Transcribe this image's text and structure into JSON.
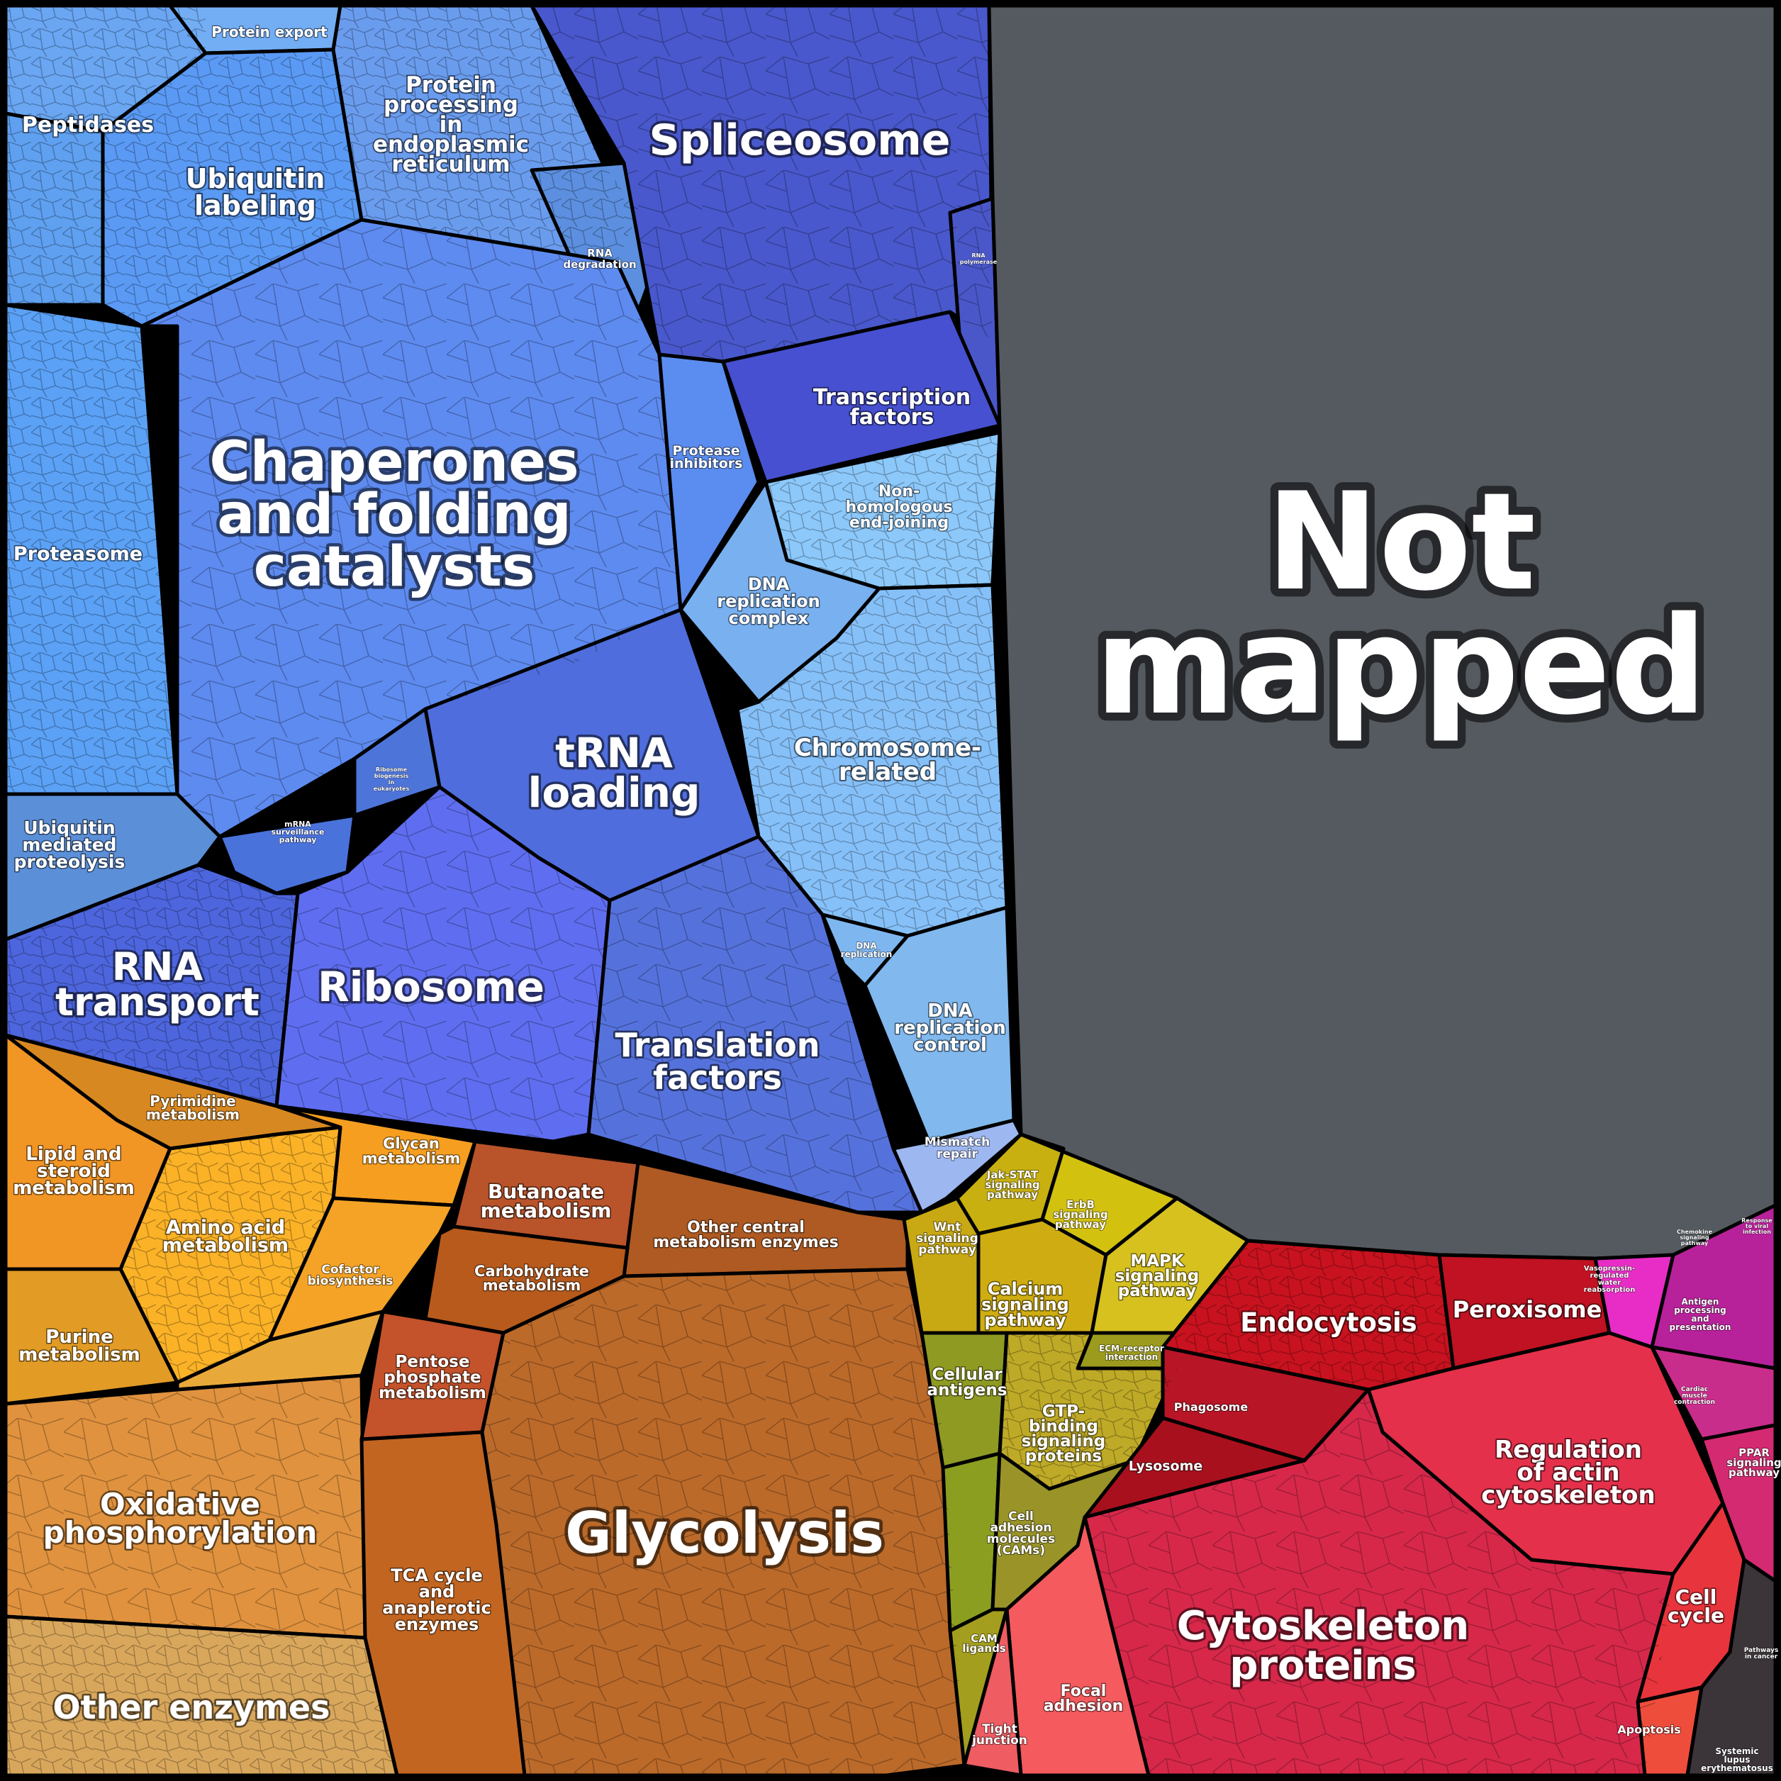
{
  "colors": {
    "blue": "#5b86ee",
    "indigo": "#4a56cf",
    "lightblue": "#88bdf4",
    "orange": "#e99a2e",
    "brown": "#b86626",
    "yellow": "#c9b413",
    "olive": "#9a9a2a",
    "red": "#d6203e",
    "magenta": "#c7239f",
    "gray": "#545a5f"
  },
  "labels": {
    "protein_export": "Protein export",
    "peptidases": "Peptidases",
    "ubiquitin_labeling": [
      "Ubiquitin",
      "labeling"
    ],
    "protein_processing_er": [
      "Protein",
      "processing",
      "in",
      "endoplasmic",
      "reticulum"
    ],
    "spliceosome": "Spliceosome",
    "rna_degradation": [
      "RNA",
      "degradation"
    ],
    "rna_polymerase": [
      "RNA",
      "polymerase"
    ],
    "transcription_factors": [
      "Transcription",
      "factors"
    ],
    "protease_inhibitors": [
      "Protease",
      "inhibitors"
    ],
    "chaperones": [
      "Chaperones",
      "and folding",
      "catalysts"
    ],
    "proteasome": "Proteasome",
    "non_homologous": [
      "Non-",
      "homologous",
      "end-joining"
    ],
    "dna_replication_complex": [
      "DNA",
      "replication",
      "complex"
    ],
    "trna_loading": [
      "tRNA",
      "loading"
    ],
    "ribosome_biogenesis": [
      "Ribosome",
      "biogenesis",
      "in",
      "eukaryotes"
    ],
    "chromosome_related": [
      "Chromosome-",
      "related"
    ],
    "ubiquitin_mediated": [
      "Ubiquitin",
      "mediated",
      "proteolysis"
    ],
    "mrna_surveillance": [
      "mRNA",
      "surveillance",
      "pathway"
    ],
    "rna_transport": [
      "RNA",
      "transport"
    ],
    "ribosome": "Ribosome",
    "dna_replication": [
      "DNA",
      "replication"
    ],
    "dna_replication_control": [
      "DNA",
      "replication",
      "control"
    ],
    "translation_factors": [
      "Translation",
      "factors"
    ],
    "mismatch_repair": [
      "Mismatch",
      "repair"
    ],
    "not_mapped": [
      "Not",
      "mapped"
    ],
    "pyrimidine": [
      "Pyrimidine",
      "metabolism"
    ],
    "lipid_steroid": [
      "Lipid and",
      "steroid",
      "metabolism"
    ],
    "glycan": [
      "Glycan",
      "metabolism"
    ],
    "amino_acid": [
      "Amino acid",
      "metabolism"
    ],
    "cofactor": [
      "Cofactor",
      "biosynthesis"
    ],
    "butanoate": [
      "Butanoate",
      "metabolism"
    ],
    "other_central": [
      "Other central",
      "metabolism enzymes"
    ],
    "carbohydrate": [
      "Carbohydrate",
      "metabolism"
    ],
    "purine": [
      "Purine",
      "metabolism"
    ],
    "pentose": [
      "Pentose",
      "phosphate",
      "metabolism"
    ],
    "oxidative": [
      "Oxidative",
      "phosphorylation"
    ],
    "tca": [
      "TCA cycle",
      "and",
      "anaplerotic",
      "enzymes"
    ],
    "glycolysis": "Glycolysis",
    "other_enzymes": "Other enzymes",
    "jak_stat": [
      "Jak-STAT",
      "signaling",
      "pathway"
    ],
    "erbb": [
      "ErbB",
      "signaling",
      "pathway"
    ],
    "wnt": [
      "Wnt",
      "signaling",
      "pathway"
    ],
    "mapk": [
      "MAPK",
      "signaling",
      "pathway"
    ],
    "calcium": [
      "Calcium",
      "signaling",
      "pathway"
    ],
    "ecm_receptor": [
      "ECM-receptor",
      "interaction"
    ],
    "cellular_antigens": [
      "Cellular",
      "antigens"
    ],
    "gtp_binding": [
      "GTP-",
      "binding",
      "signaling",
      "proteins"
    ],
    "cams": [
      "Cell",
      "adhesion",
      "molecules",
      "(CAMs)"
    ],
    "cam_ligands": [
      "CAM",
      "ligands"
    ],
    "endocytosis": "Endocytosis",
    "peroxisome": "Peroxisome",
    "phagosome": "Phagosome",
    "lysosome": "Lysosome",
    "regulation_actin": [
      "Regulation",
      "of actin",
      "cytoskeleton"
    ],
    "cytoskeleton": [
      "Cytoskeleton",
      "proteins"
    ],
    "focal_adhesion": [
      "Focal",
      "adhesion"
    ],
    "tight_junction": [
      "Tight",
      "junction"
    ],
    "vasopressin": [
      "Vasopressin-",
      "regulated",
      "water",
      "reabsorption"
    ],
    "chemokine": [
      "Chemokine",
      "signaling",
      "pathway"
    ],
    "response_viral": [
      "Response",
      "to viral",
      "infection"
    ],
    "antigen_processing": [
      "Antigen",
      "processing",
      "and",
      "presentation"
    ],
    "cardiac_muscle": [
      "Cardiac",
      "muscle",
      "contraction"
    ],
    "ppar": [
      "PPAR",
      "signaling",
      "pathway"
    ],
    "cell_cycle": [
      "Cell",
      "cycle"
    ],
    "apoptosis": "Apoptosis",
    "pathways_cancer": [
      "Pathways",
      "in cancer"
    ],
    "sle": [
      "Systemic",
      "lupus",
      "erythematosus"
    ]
  }
}
